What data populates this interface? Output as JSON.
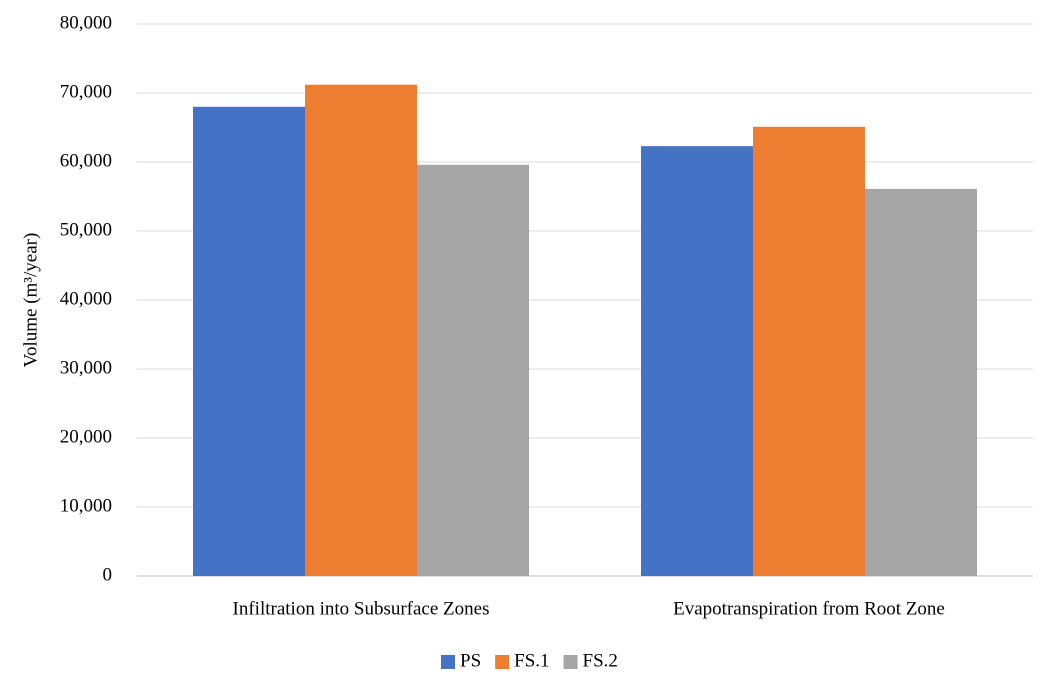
{
  "chart_data": {
    "type": "bar",
    "y_label": "Volume (m³/year)",
    "categories": [
      "Infiltration into Subsurface Zones",
      "Evapotranspiration from Root Zone"
    ],
    "series": [
      {
        "name": "PS",
        "color": "#4472c4",
        "values": [
          68000,
          62300
        ]
      },
      {
        "name": "FS.1",
        "color": "#ed7d31",
        "values": [
          71200,
          65100
        ]
      },
      {
        "name": "FS.2",
        "color": "#a5a5a5",
        "values": [
          59600,
          56100
        ]
      }
    ],
    "ylim": [
      0,
      80000
    ],
    "yticks": [
      0,
      {
        "value": 10000,
        "label": "10,000"
      },
      {
        "value": 20000,
        "label": "20,000"
      },
      {
        "value": 30000,
        "label": "30,000"
      },
      {
        "value": 40000,
        "label": "40,000"
      },
      {
        "value": 50000,
        "label": "50,000"
      },
      {
        "value": 60000,
        "label": "60,000"
      },
      {
        "value": 70000,
        "label": "70,000"
      },
      {
        "value": 80000,
        "label": "80,000"
      }
    ],
    "grid": true,
    "legend": "bottom"
  }
}
